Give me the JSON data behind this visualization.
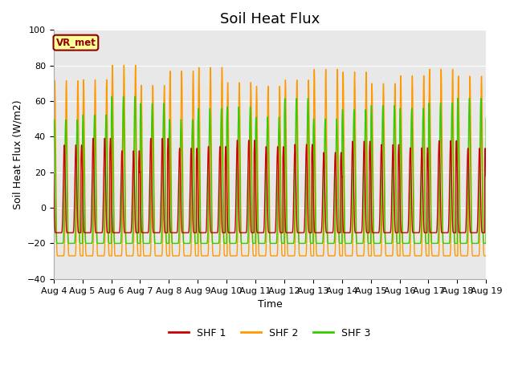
{
  "title": "Soil Heat Flux",
  "ylabel": "Soil Heat Flux (W/m2)",
  "xlabel": "Time",
  "ylim": [
    -40,
    100
  ],
  "xlim": [
    0,
    15
  ],
  "yticks": [
    -40,
    -20,
    0,
    20,
    40,
    60,
    80,
    100
  ],
  "xtick_labels": [
    "Aug 4",
    "Aug 5",
    "Aug 6",
    "Aug 7",
    "Aug 8",
    "Aug 9",
    "Aug 10",
    "Aug 11",
    "Aug 12",
    "Aug 13",
    "Aug 14",
    "Aug 15",
    "Aug 16",
    "Aug 17",
    "Aug 18",
    "Aug 19"
  ],
  "series_colors": [
    "#cc0000",
    "#ff9900",
    "#33cc00"
  ],
  "series_labels": [
    "SHF 1",
    "SHF 2",
    "SHF 3"
  ],
  "fig_bg_color": "#ffffff",
  "plot_bg_color": "#e8e8e8",
  "vr_met_label": "VR_met",
  "vr_met_bg": "#ffff99",
  "vr_met_border": "#8b0000",
  "n_days": 15,
  "points_per_day": 240,
  "shf1_peak": 37,
  "shf1_trough": -14,
  "shf2_peak": 78,
  "shf2_trough": -27,
  "shf3_peak": 60,
  "shf3_trough": -20,
  "title_fontsize": 13,
  "axis_label_fontsize": 9,
  "tick_fontsize": 8,
  "legend_fontsize": 9
}
